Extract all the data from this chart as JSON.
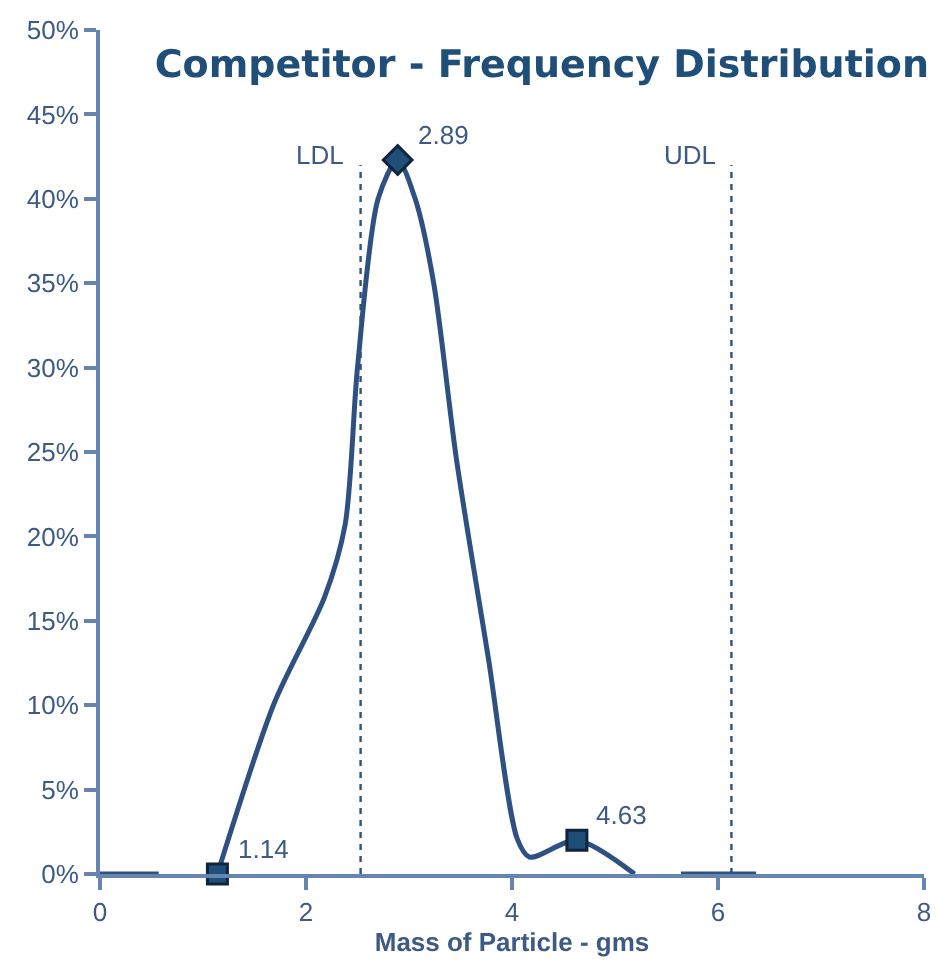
{
  "chart_data": {
    "type": "line",
    "title": "Competitor - Frequency Distribution",
    "xlabel": "Mass of Particle - gms",
    "series": [
      {
        "color": "#2e5181",
        "marker": "none",
        "x": [
          0,
          0.57,
          0.85,
          1.14,
          1.69,
          2.18,
          2.38,
          2.5,
          2.7,
          2.89,
          3.06,
          3.24,
          3.46,
          3.77,
          4.05,
          4.17,
          4.63,
          5.19,
          5.4,
          5.64,
          6.37
        ],
        "values": [
          0,
          0,
          null,
          0,
          10.1,
          16.4,
          20.7,
          30,
          40,
          42.3,
          40,
          35,
          24.6,
          12.8,
          2.1,
          1.0,
          2.0,
          0,
          null,
          0,
          0
        ]
      },
      {
        "type": "scatter",
        "color": "#1f4e79",
        "marker": "square",
        "x": [
          1.14,
          4.63
        ],
        "values": [
          0,
          2.0
        ]
      },
      {
        "type": "scatter",
        "color": "#1f4e79",
        "marker": "diamond",
        "x": [
          2.89
        ],
        "values": [
          42.3
        ]
      }
    ],
    "annotations": [
      {
        "text": "1.14",
        "x": 1.14,
        "y": 0
      },
      {
        "text": "2.89",
        "x": 2.89,
        "y": 42.3
      },
      {
        "text": "4.63",
        "x": 4.63,
        "y": 2.0
      }
    ],
    "ref_lines": [
      {
        "axis": "x",
        "value": 2.53,
        "label": "LDL",
        "line_style": "dotted",
        "color": "#2e5181"
      },
      {
        "axis": "x",
        "value": 6.13,
        "label": "UDL",
        "line_style": "dotted",
        "color": "#2e5181"
      }
    ],
    "xlim": [
      0,
      8
    ],
    "xticks": [
      0,
      2,
      4,
      6,
      8
    ],
    "ylim": [
      0,
      50
    ],
    "yticks": [
      {
        "value": 0,
        "label": "0%"
      },
      {
        "value": 5,
        "label": "5%"
      },
      {
        "value": 10,
        "label": "10%"
      },
      {
        "value": 15,
        "label": "15%"
      },
      {
        "value": 20,
        "label": "20%"
      },
      {
        "value": 25,
        "label": "25%"
      },
      {
        "value": 30,
        "label": "30%"
      },
      {
        "value": 35,
        "label": "35%"
      },
      {
        "value": 40,
        "label": "40%"
      },
      {
        "value": 45,
        "label": "45%"
      },
      {
        "value": 50,
        "label": "50%"
      }
    ],
    "line_style": "solid"
  }
}
